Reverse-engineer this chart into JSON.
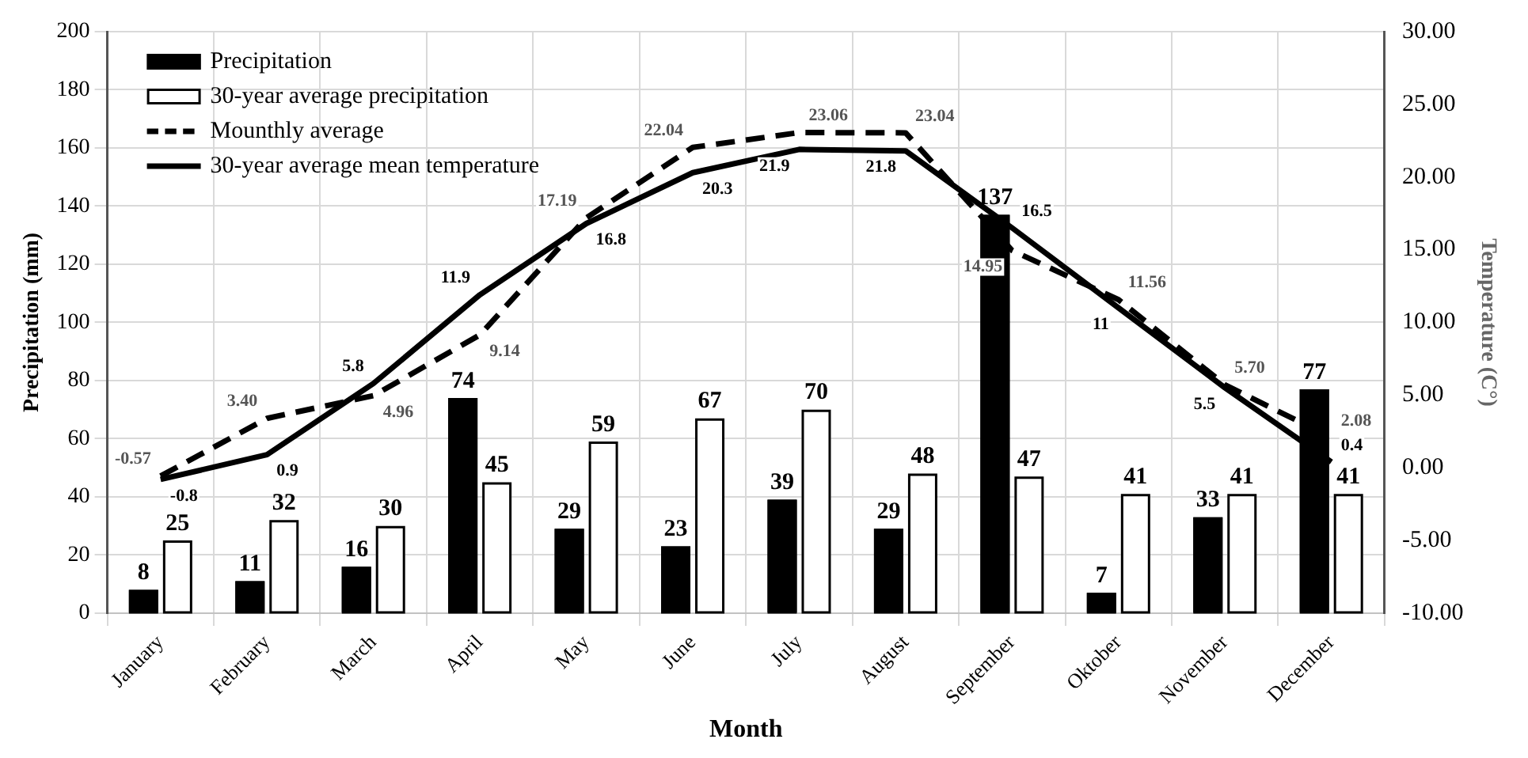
{
  "chart_data": {
    "type": "bar",
    "xlabel": "Month",
    "ylabel": "Precipitation (mm)",
    "y2label": "Temperature (C°)",
    "categories": [
      "January",
      "February",
      "March",
      "April",
      "May",
      "June",
      "July",
      "August",
      "September",
      "Oktober",
      "November",
      "December"
    ],
    "series": [
      {
        "name": "Precipitation",
        "color": "#000000",
        "values": [
          8,
          11,
          16,
          74,
          29,
          23,
          39,
          29,
          137,
          7,
          33,
          77
        ]
      },
      {
        "name": "30-year average precipitation",
        "color": "#ffffff",
        "values": [
          25,
          32,
          30,
          45,
          59,
          67,
          70,
          48,
          47,
          41,
          41,
          41
        ]
      },
      {
        "name": "Mounthly average",
        "type": "line",
        "axis": "y2",
        "line_style": "dashed",
        "color": "#000000",
        "values": [
          -0.57,
          3.4,
          4.96,
          9.14,
          17.19,
          22.04,
          23.06,
          23.04,
          14.95,
          11.56,
          5.7,
          2.08
        ],
        "value_labels": [
          "-0.57",
          "3.40",
          "4.96",
          "9.14",
          "17.19",
          "22.04",
          "23.06",
          "23.04",
          "14.95",
          "11.56",
          "5.70",
          "2.08"
        ]
      },
      {
        "name": "30-year average mean temperature",
        "type": "line",
        "axis": "y2",
        "line_style": "solid",
        "color": "#000000",
        "values": [
          -0.8,
          0.9,
          5.8,
          11.9,
          16.8,
          20.3,
          21.9,
          21.8,
          16.5,
          11,
          5.5,
          0.4
        ],
        "value_labels": [
          "-0.8",
          "0.9",
          "5.8",
          "11.9",
          "16.8",
          "20.3",
          "21.9",
          "21.8",
          "16.5",
          "11",
          "5.5",
          "0.4"
        ]
      }
    ],
    "ylim": [
      0,
      200
    ],
    "yticks": [
      0,
      20,
      40,
      60,
      80,
      100,
      120,
      140,
      160,
      180,
      200
    ],
    "y2lim": [
      -10,
      30
    ],
    "y2ticks": [
      {
        "value": -10,
        "label": "-10.00"
      },
      {
        "value": -5,
        "label": "-5.00"
      },
      {
        "value": 0,
        "label": "0.00"
      },
      {
        "value": 5,
        "label": "5.00"
      },
      {
        "value": 10,
        "label": "10.00"
      },
      {
        "value": 15,
        "label": "15.00"
      },
      {
        "value": 20,
        "label": "20.00"
      },
      {
        "value": 25,
        "label": "25.00"
      },
      {
        "value": 30,
        "label": "30.00"
      }
    ],
    "data_labels": true,
    "grid": true,
    "legend": "top left",
    "marker": "none"
  }
}
